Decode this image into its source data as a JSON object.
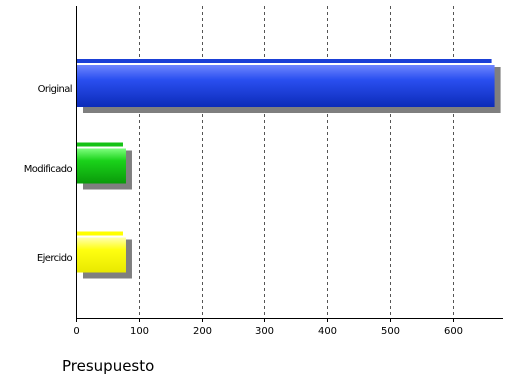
{
  "chart_data": {
    "type": "bar",
    "orientation": "horizontal",
    "categories": [
      "Original",
      "Modificado",
      "Ejercido"
    ],
    "values": [
      665,
      78,
      78
    ],
    "colors": [
      "#1a3fd6",
      "#14c214",
      "#ffff00"
    ],
    "xlabel": "Presupuesto",
    "ylabel": "",
    "title": "",
    "xlim": [
      0,
      680
    ],
    "xticks": [
      0,
      100,
      200,
      300,
      400,
      500,
      600
    ],
    "grid": "vertical dashed"
  }
}
